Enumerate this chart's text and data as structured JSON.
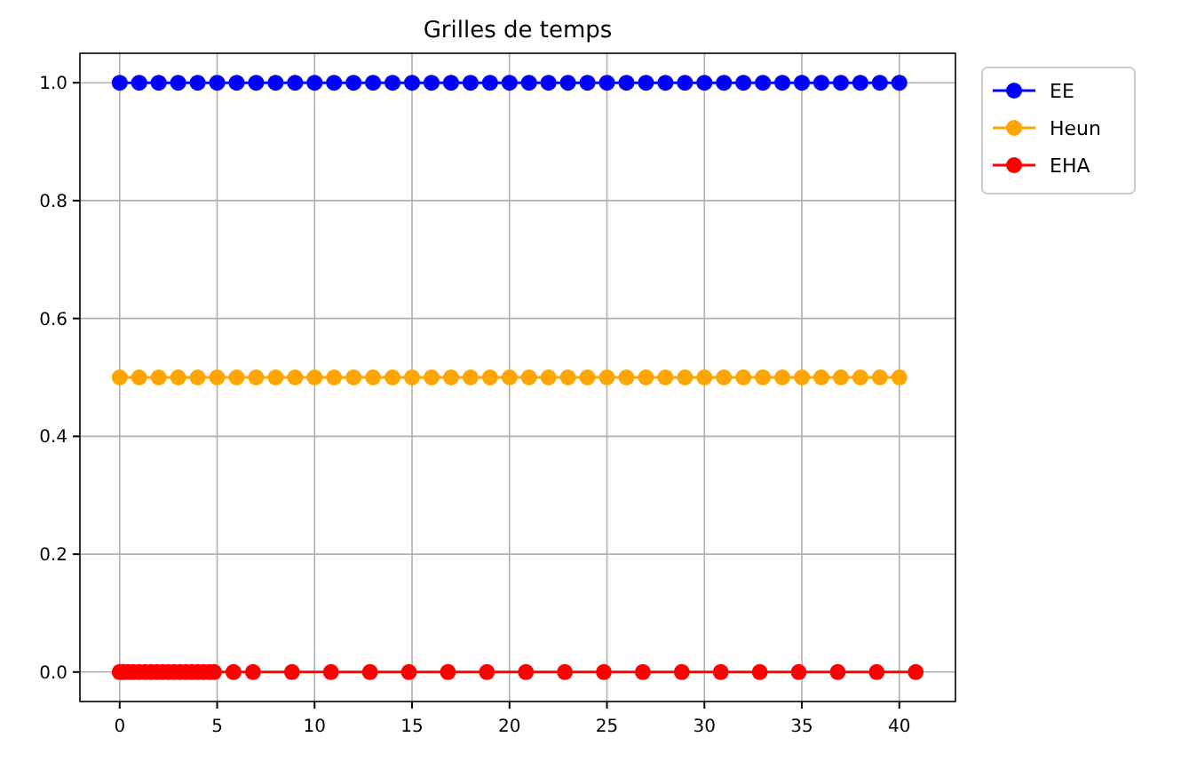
{
  "chart_data": {
    "type": "line",
    "title": "Grilles de temps",
    "marker": "circle",
    "grid": true,
    "legend": "top right",
    "xlim": [
      -2.04,
      42.88
    ],
    "ylim": [
      -0.05,
      1.05
    ],
    "xticks": [
      0,
      5,
      10,
      15,
      20,
      25,
      30,
      35,
      40
    ],
    "yticks": [
      {
        "value": 0,
        "label": "0.0"
      },
      {
        "value": 0.2,
        "label": "0.2"
      },
      {
        "value": 0.4,
        "label": "0.4"
      },
      {
        "value": 0.6,
        "label": "0.6"
      },
      {
        "value": 0.8,
        "label": "0.8"
      },
      {
        "value": 1,
        "label": "1.0"
      }
    ],
    "series": [
      {
        "name": "EE",
        "color": "#0000ff",
        "x": [
          0,
          1,
          2,
          3,
          4,
          5,
          6,
          7,
          8,
          9,
          10,
          11,
          12,
          13,
          14,
          15,
          16,
          17,
          18,
          19,
          20,
          21,
          22,
          23,
          24,
          25,
          26,
          27,
          28,
          29,
          30,
          31,
          32,
          33,
          34,
          35,
          36,
          37,
          38,
          39,
          40
        ],
        "values": [
          1,
          1,
          1,
          1,
          1,
          1,
          1,
          1,
          1,
          1,
          1,
          1,
          1,
          1,
          1,
          1,
          1,
          1,
          1,
          1,
          1,
          1,
          1,
          1,
          1,
          1,
          1,
          1,
          1,
          1,
          1,
          1,
          1,
          1,
          1,
          1,
          1,
          1,
          1,
          1,
          1
        ]
      },
      {
        "name": "Heun",
        "color": "#ffa500",
        "x": [
          0,
          1,
          2,
          3,
          4,
          5,
          6,
          7,
          8,
          9,
          10,
          11,
          12,
          13,
          14,
          15,
          16,
          17,
          18,
          19,
          20,
          21,
          22,
          23,
          24,
          25,
          26,
          27,
          28,
          29,
          30,
          31,
          32,
          33,
          34,
          35,
          36,
          37,
          38,
          39,
          40
        ],
        "values": [
          0.5,
          0.5,
          0.5,
          0.5,
          0.5,
          0.5,
          0.5,
          0.5,
          0.5,
          0.5,
          0.5,
          0.5,
          0.5,
          0.5,
          0.5,
          0.5,
          0.5,
          0.5,
          0.5,
          0.5,
          0.5,
          0.5,
          0.5,
          0.5,
          0.5,
          0.5,
          0.5,
          0.5,
          0.5,
          0.5,
          0.5,
          0.5,
          0.5,
          0.5,
          0.5,
          0.5,
          0.5,
          0.5,
          0.5,
          0.5,
          0.5
        ]
      },
      {
        "name": "EHA",
        "color": "#ff0000",
        "x": [
          0,
          0.2,
          0.45,
          0.7,
          1,
          1.3,
          1.6,
          1.9,
          2.2,
          2.5,
          2.8,
          3.1,
          3.4,
          3.7,
          4,
          4.3,
          4.6,
          4.84,
          5.84,
          6.84,
          8.84,
          10.84,
          12.84,
          14.84,
          16.84,
          18.84,
          20.84,
          22.84,
          24.84,
          26.84,
          28.84,
          30.84,
          32.84,
          34.84,
          36.84,
          38.84,
          40.84
        ],
        "values": [
          0,
          0,
          0,
          0,
          0,
          0,
          0,
          0,
          0,
          0,
          0,
          0,
          0,
          0,
          0,
          0,
          0,
          0,
          0,
          0,
          0,
          0,
          0,
          0,
          0,
          0,
          0,
          0,
          0,
          0,
          0,
          0,
          0,
          0,
          0,
          0,
          0
        ]
      }
    ]
  }
}
